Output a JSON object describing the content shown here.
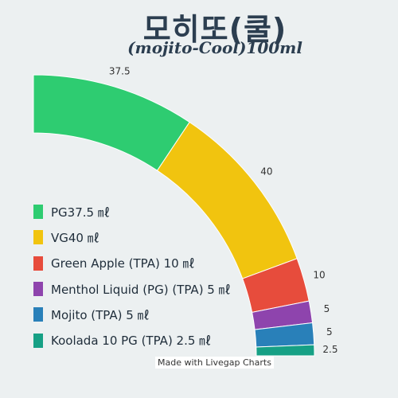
{
  "chart_data": {
    "type": "pie",
    "title": "모히또(쿨)",
    "subtitle": "(mojito-Cool)100ml",
    "legend_position": "left",
    "slices": [
      {
        "label": "PG37.5 ㎖",
        "value": 37.5,
        "value_label": "37.5",
        "color": "#2ecc71"
      },
      {
        "label": "VG40 ㎖",
        "value": 40,
        "value_label": "40",
        "color": "#f1c40f"
      },
      {
        "label": "Green Apple (TPA) 10 ㎖",
        "value": 10,
        "value_label": "10",
        "color": "#e74c3c"
      },
      {
        "label": "Menthol Liquid (PG) (TPA) 5 ㎖",
        "value": 5,
        "value_label": "5",
        "color": "#8e44ad"
      },
      {
        "label": "Mojito (TPA) 5 ㎖",
        "value": 5,
        "value_label": "5",
        "color": "#2980b9"
      },
      {
        "label": "Koolada 10 PG (TPA) 2.5 ㎖",
        "value": 2.5,
        "value_label": "2.5",
        "color": "#16a085"
      }
    ]
  },
  "credit": "Made with Livegap Charts"
}
